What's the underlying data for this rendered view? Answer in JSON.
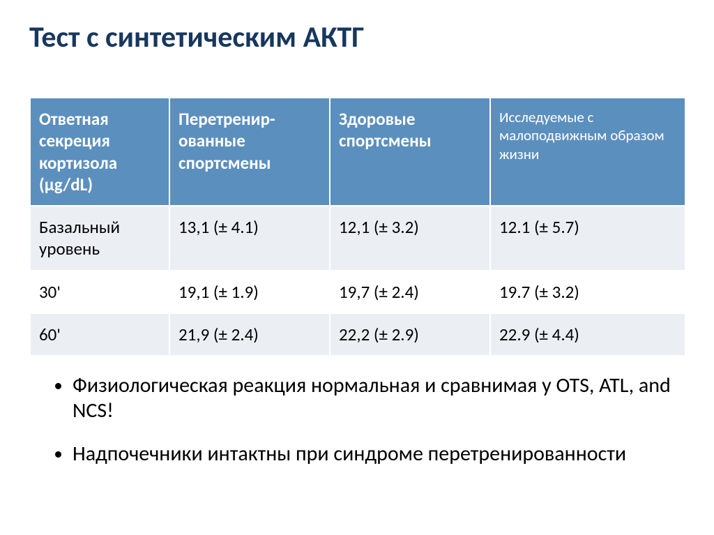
{
  "title": "Тест с синтетическим АКТГ",
  "table": {
    "header_bg": "#5b8fbe",
    "header_fg": "#ffffff",
    "row_alt_bg": "#ebeff4",
    "row_bg": "#ffffff",
    "border_color": "#ffffff",
    "columns": [
      "Ответная секреция кортизола (µg/dL)",
      "Перетренир-ованные спортсмены",
      "Здоровые спортсмены",
      "Исследуемые с малоподвижным образом жизни"
    ],
    "rows": [
      [
        "Базальный уровень",
        "13,1 (± 4.1)",
        "12,1 (± 3.2)",
        "12.1 (± 5.7)"
      ],
      [
        "30'",
        "19,1 (± 1.9)",
        "19,7 (± 2.4)",
        "19.7 (± 3.2)"
      ],
      [
        "60'",
        "21,9 (± 2.4)",
        "22,2 (± 2.9)",
        "22.9 (± 4.4)"
      ]
    ]
  },
  "bullets": [
    "Физиологическая реакция нормальная и сравнимая у OTS, ATL, and NCS!",
    "Надпочечники интактны при синдроме перетренированности"
  ]
}
